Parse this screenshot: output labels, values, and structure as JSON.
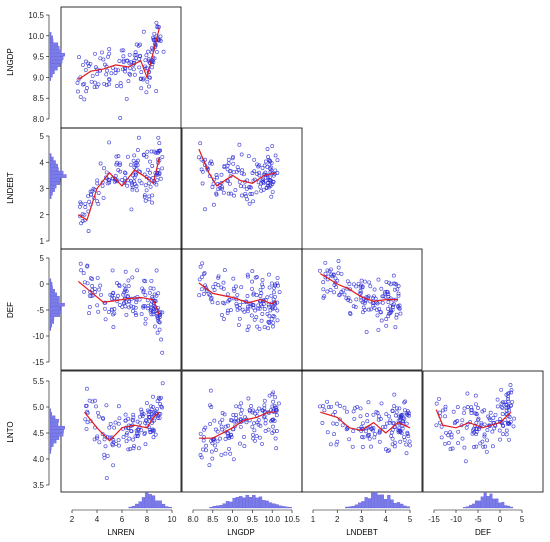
{
  "chart_data": {
    "type": "scatter",
    "variables": [
      "LNGDP",
      "LNDEBT",
      "DEF",
      "LNTO",
      "LNREN"
    ],
    "colors": {
      "points": "#2b2bd6",
      "smoother": "#e31a1c",
      "histogram": "#7b7bea",
      "frame": "#000000"
    },
    "row_panels": {
      "LNGDP": {
        "ylabel": "LNGDP",
        "ylim": [
          8.0,
          10.5
        ],
        "yticks": [
          "8.0",
          "8.5",
          "9.0",
          "9.5",
          "10.0",
          "10.5"
        ]
      },
      "LNDEBT": {
        "ylabel": "LNDEBT",
        "ylim": [
          1,
          5
        ],
        "yticks": [
          "1",
          "2",
          "3",
          "4",
          "5"
        ]
      },
      "DEF": {
        "ylabel": "DEF",
        "ylim": [
          -15,
          5
        ],
        "yticks": [
          "-15",
          "-10",
          "-5",
          "0",
          "5"
        ]
      },
      "LNTO": {
        "ylabel": "LNTO",
        "ylim": [
          3.5,
          5.5
        ],
        "yticks": [
          "3.5",
          "4.0",
          "4.5",
          "5.0",
          "5.5"
        ]
      }
    },
    "col_panels": {
      "LNREN": {
        "xlabel": "LNREN",
        "xlim": [
          2,
          10
        ],
        "xticks": [
          "2",
          "4",
          "6",
          "8",
          "10"
        ]
      },
      "LNGDP": {
        "xlabel": "LNGDP",
        "xlim": [
          8.0,
          10.5
        ],
        "xticks": [
          "8.0",
          "8.5",
          "9.0",
          "9.5",
          "10.0",
          "10.5"
        ]
      },
      "LNDEBT": {
        "xlabel": "LNDEBT",
        "xlim": [
          1,
          5
        ],
        "xticks": [
          "1",
          "2",
          "3",
          "4",
          "5"
        ]
      },
      "DEF": {
        "xlabel": "DEF",
        "xlim": [
          -15,
          5
        ],
        "xticks": [
          "-15",
          "-10",
          "-5",
          "0",
          "5"
        ]
      }
    },
    "panels": [
      {
        "row": "LNGDP",
        "col": "LNREN",
        "smoother": [
          [
            2.5,
            8.95
          ],
          [
            3.5,
            9.15
          ],
          [
            4.5,
            9.2
          ],
          [
            5.5,
            9.3
          ],
          [
            6.5,
            9.25
          ],
          [
            7.5,
            9.4
          ],
          [
            8.0,
            9.0
          ],
          [
            8.5,
            9.6
          ],
          [
            9.0,
            10.2
          ]
        ]
      },
      {
        "row": "LNDEBT",
        "col": "LNREN",
        "smoother": [
          [
            2.5,
            2.0
          ],
          [
            3.2,
            1.8
          ],
          [
            4.0,
            3.0
          ],
          [
            5.0,
            3.6
          ],
          [
            6.0,
            3.1
          ],
          [
            7.0,
            3.7
          ],
          [
            8.0,
            3.4
          ],
          [
            8.5,
            3.2
          ],
          [
            9.0,
            4.2
          ]
        ]
      },
      {
        "row": "LNDEBT",
        "col": "LNGDP",
        "smoother": [
          [
            8.15,
            4.5
          ],
          [
            8.4,
            3.6
          ],
          [
            8.6,
            3.1
          ],
          [
            8.8,
            3.3
          ],
          [
            9.0,
            3.5
          ],
          [
            9.2,
            3.3
          ],
          [
            9.5,
            3.2
          ],
          [
            9.8,
            3.5
          ],
          [
            10.1,
            3.6
          ]
        ]
      },
      {
        "row": "DEF",
        "col": "LNREN",
        "smoother": [
          [
            2.5,
            0.5
          ],
          [
            3.5,
            -1.5
          ],
          [
            4.5,
            -3.5
          ],
          [
            5.5,
            -3.2
          ],
          [
            6.5,
            -2.8
          ],
          [
            7.5,
            -2.6
          ],
          [
            8.5,
            -3.0
          ],
          [
            9.0,
            -6.0
          ]
        ]
      },
      {
        "row": "DEF",
        "col": "LNGDP",
        "smoother": [
          [
            8.15,
            0.2
          ],
          [
            8.5,
            -1.8
          ],
          [
            9.0,
            -2.6
          ],
          [
            9.4,
            -3.6
          ],
          [
            9.7,
            -3.0
          ],
          [
            10.0,
            -3.8
          ],
          [
            10.1,
            -3.2
          ]
        ]
      },
      {
        "row": "DEF",
        "col": "LNDEBT",
        "smoother": [
          [
            1.3,
            2.0
          ],
          [
            2.0,
            0.0
          ],
          [
            2.5,
            -1.0
          ],
          [
            3.0,
            -2.5
          ],
          [
            3.5,
            -3.3
          ],
          [
            4.0,
            -3.0
          ],
          [
            4.5,
            -3.0
          ]
        ]
      },
      {
        "row": "LNTO",
        "col": "LNREN",
        "smoother": [
          [
            3.0,
            4.9
          ],
          [
            4.0,
            4.6
          ],
          [
            5.0,
            4.35
          ],
          [
            6.0,
            4.6
          ],
          [
            7.0,
            4.65
          ],
          [
            8.0,
            4.6
          ],
          [
            8.5,
            4.8
          ],
          [
            9.0,
            4.9
          ]
        ]
      },
      {
        "row": "LNTO",
        "col": "LNGDP",
        "smoother": [
          [
            8.15,
            4.4
          ],
          [
            8.5,
            4.4
          ],
          [
            9.0,
            4.6
          ],
          [
            9.3,
            4.75
          ],
          [
            9.6,
            4.8
          ],
          [
            9.9,
            4.9
          ],
          [
            10.1,
            4.9
          ]
        ]
      },
      {
        "row": "LNTO",
        "col": "LNDEBT",
        "smoother": [
          [
            1.3,
            4.9
          ],
          [
            2.0,
            4.8
          ],
          [
            2.5,
            4.6
          ],
          [
            3.0,
            4.55
          ],
          [
            3.5,
            4.7
          ],
          [
            4.0,
            4.5
          ],
          [
            4.5,
            4.7
          ],
          [
            5.0,
            4.6
          ]
        ]
      },
      {
        "row": "LNTO",
        "col": "DEF",
        "smoother": [
          [
            -14.5,
            4.95
          ],
          [
            -13.0,
            4.65
          ],
          [
            -10.0,
            4.6
          ],
          [
            -7.0,
            4.7
          ],
          [
            -4.0,
            4.6
          ],
          [
            -2.0,
            4.65
          ],
          [
            0.0,
            4.7
          ],
          [
            2.5,
            4.9
          ]
        ]
      }
    ]
  }
}
